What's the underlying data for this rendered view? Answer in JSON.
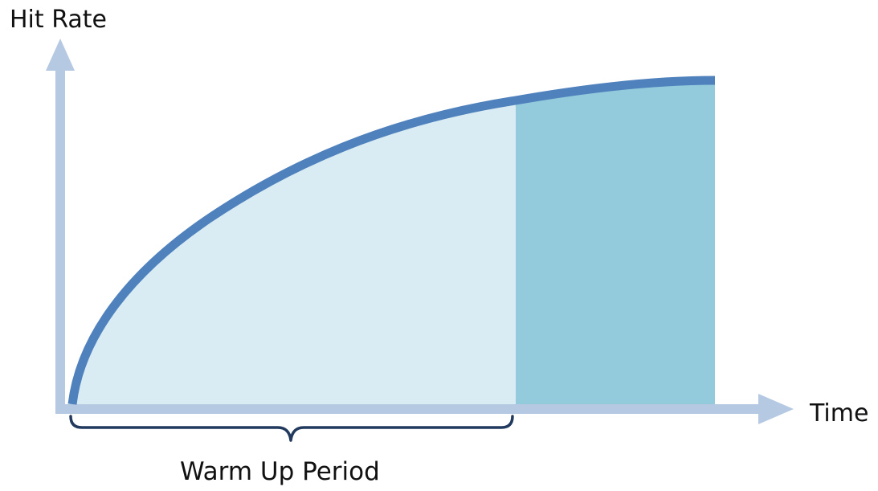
{
  "y_axis_label": "Hit Rate",
  "x_axis_label": "Time",
  "period_label": "Warm Up Period",
  "colors": {
    "axis": "#b5c9e3",
    "curve": "#4f81bd",
    "warmup_fill": "#daecf3",
    "steady_fill": "#93cbdc",
    "brace": "#223a5e"
  }
}
